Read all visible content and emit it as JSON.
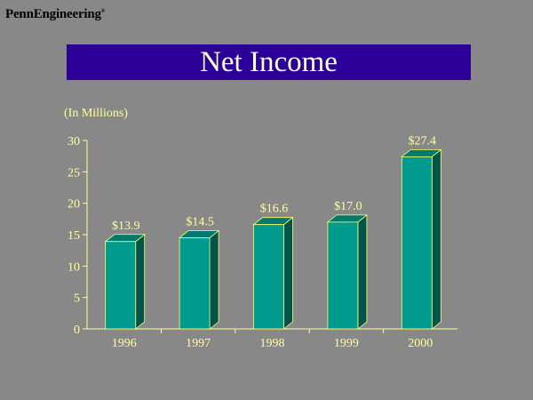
{
  "header": {
    "brand": "PennEngineering",
    "brand_mark": "®",
    "title": "Net Income"
  },
  "chart_data": {
    "type": "bar",
    "title": "Net Income",
    "units_label": "(In Millions)",
    "categories": [
      "1996",
      "1997",
      "1998",
      "1999",
      "2000"
    ],
    "values": [
      13.9,
      14.5,
      16.6,
      17.0,
      27.4
    ],
    "data_labels": [
      "$13.9",
      "$14.5",
      "$16.6",
      "$17.0",
      "$27.4"
    ],
    "y_ticks": [
      0,
      5,
      10,
      15,
      20,
      25,
      30
    ],
    "ylim": [
      0,
      30
    ],
    "xlabel": "",
    "ylabel": "",
    "grid": false,
    "legend": "none",
    "colors": {
      "bar_front": "#009b8f",
      "bar_top": "#007a70",
      "bar_side": "#00544c",
      "bar_edge": "#ffff66",
      "axis": "#ffff99"
    }
  }
}
